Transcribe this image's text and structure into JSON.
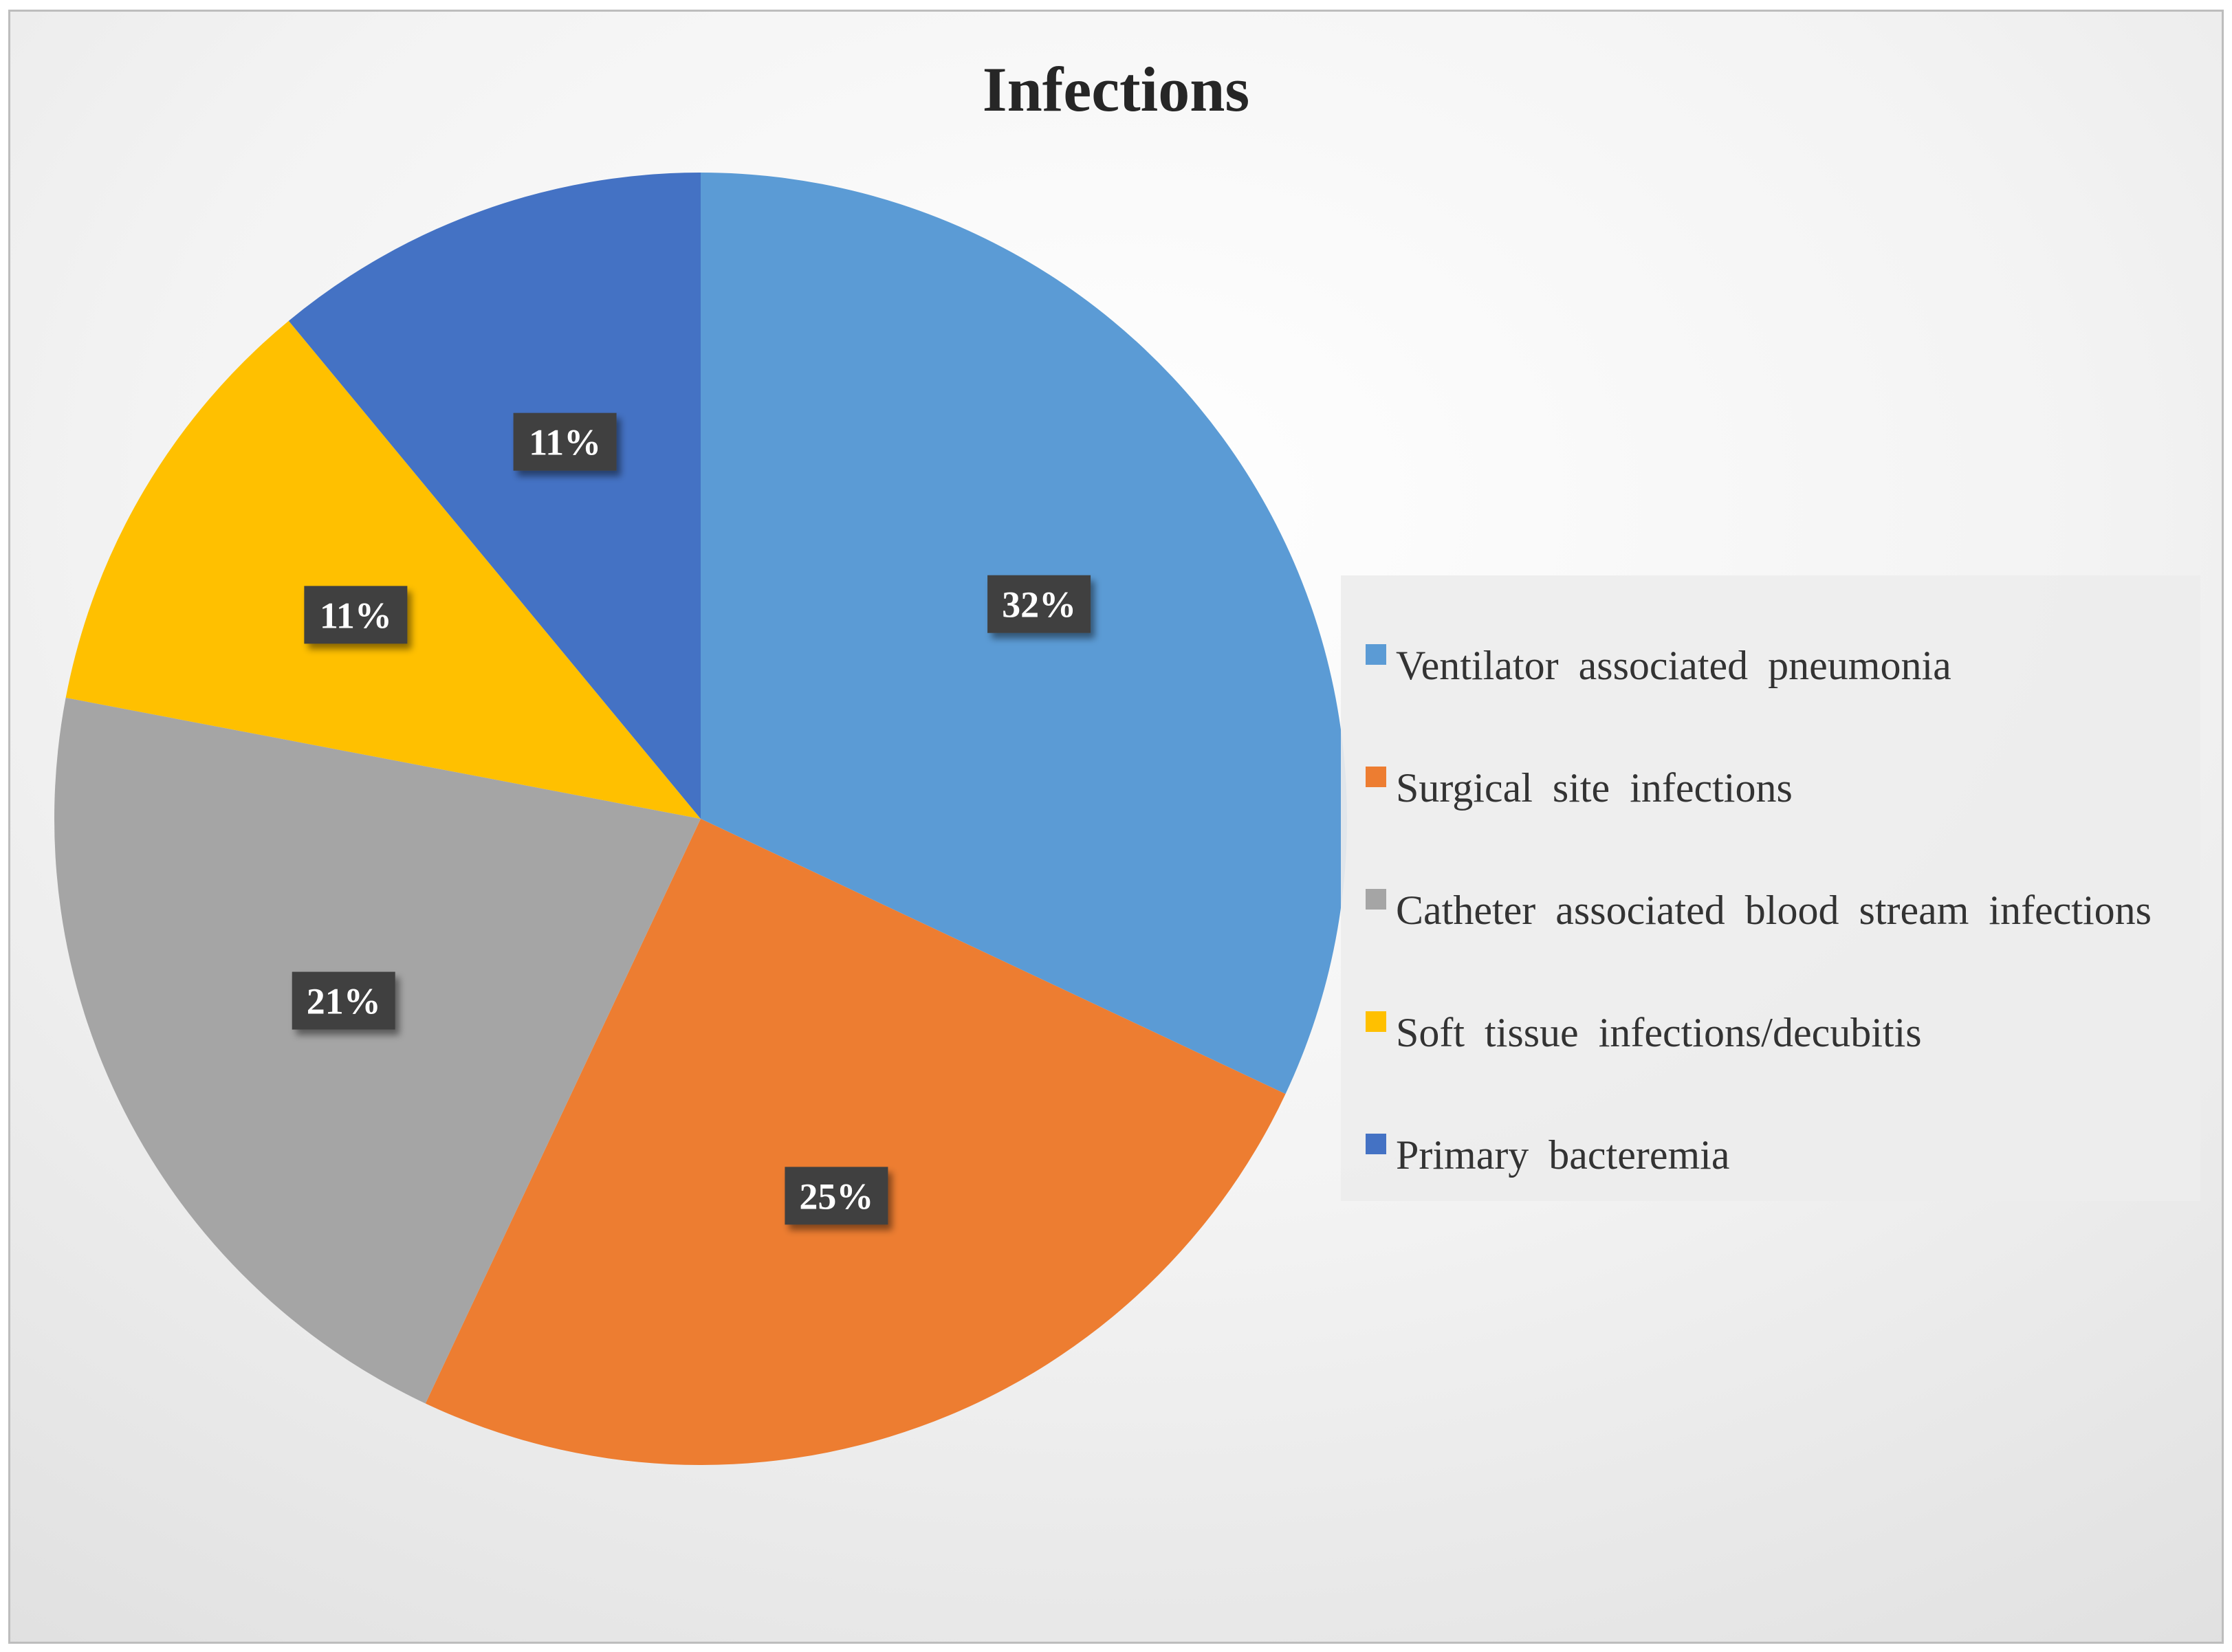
{
  "chart_data": {
    "type": "pie",
    "title": "Infections",
    "legend_position": "right",
    "start_angle_deg": 0,
    "direction": "clockwise",
    "slices": [
      {
        "label": "Ventilator associated pneumonia",
        "value": 32,
        "data_label": "32%",
        "color": "#5b9bd5"
      },
      {
        "label": "Surgical site infections",
        "value": 25,
        "data_label": "25%",
        "color": "#ed7d31"
      },
      {
        "label": "Catheter associated blood stream infections",
        "value": 21,
        "data_label": "21%",
        "color": "#a5a5a5"
      },
      {
        "label": "Soft tissue infections/decubitis",
        "value": 11,
        "data_label": "11%",
        "color": "#ffc000"
      },
      {
        "label": "Primary bacteremia",
        "value": 11,
        "data_label": "11%",
        "color": "#4472c4"
      }
    ]
  }
}
